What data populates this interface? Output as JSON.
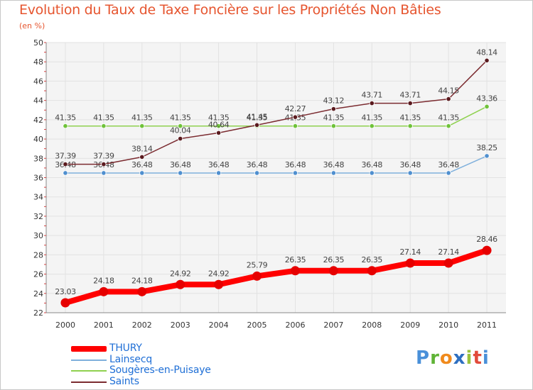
{
  "title": "Evolution du Taux de Taxe Foncière sur les Propriétés Non Bâties",
  "unit": "(en %)",
  "logo": {
    "text": "Proxiti",
    "letters": [
      "P",
      "r",
      "o",
      "x",
      "i",
      "t",
      "i"
    ],
    "colors": [
      "#4a90d9",
      "#5fb336",
      "#f08a1c",
      "#2e6fc0",
      "#9bc23c",
      "#e24b3b",
      "#4a90d9"
    ]
  },
  "chart_data": {
    "type": "line",
    "title": "Evolution du Taux de Taxe Foncière sur les Propriétés Non Bâties",
    "ylabel": "(en %)",
    "xlabel": "",
    "ylim": [
      22,
      50
    ],
    "yticks": [
      "22",
      "24",
      "26",
      "28",
      "30",
      "32",
      "34",
      "36",
      "38",
      "40",
      "42",
      "44",
      "46",
      "48",
      "50"
    ],
    "categories": [
      "2000",
      "2001",
      "2002",
      "2003",
      "2004",
      "2005",
      "2006",
      "2007",
      "2008",
      "2009",
      "2010",
      "2011"
    ],
    "grid": true,
    "series": [
      {
        "name": "Sougères-en-Puisaye",
        "color": "#8fd14f",
        "marker": "#6fc23a",
        "values": [
          41.35,
          41.35,
          41.35,
          41.35,
          41.35,
          41.35,
          41.35,
          41.35,
          41.35,
          41.35,
          41.35,
          43.36
        ],
        "labels": [
          "41.35",
          "41.35",
          "41.35",
          "41.35",
          "41.35",
          "41.35",
          "41.35",
          "41.35",
          "41.35",
          "41.35",
          "41.35",
          "43.36"
        ]
      },
      {
        "name": "Lainsecq",
        "color": "#7fb0dc",
        "marker": "#4f8fcf",
        "values": [
          36.48,
          36.48,
          36.48,
          36.48,
          36.48,
          36.48,
          36.48,
          36.48,
          36.48,
          36.48,
          36.48,
          38.25
        ],
        "labels": [
          "36.48",
          "36.48",
          "36.48",
          "36.48",
          "36.48",
          "36.48",
          "36.48",
          "36.48",
          "36.48",
          "36.48",
          "36.48",
          "38.25"
        ]
      },
      {
        "name": "Saints",
        "color": "#7b2b30",
        "marker": "#5a1a1e",
        "values": [
          37.39,
          37.39,
          38.14,
          40.04,
          40.64,
          41.45,
          42.27,
          43.12,
          43.71,
          43.71,
          44.15,
          48.14
        ],
        "labels": [
          "37.39",
          "37.39",
          "38.14",
          "40.04",
          "40.64",
          "41.45",
          "42.27",
          "43.12",
          "43.71",
          "43.71",
          "44.15",
          "48.14"
        ]
      },
      {
        "name": "THURY",
        "color": "#ff0000",
        "marker": "#e60000",
        "values": [
          23.03,
          24.18,
          24.18,
          24.92,
          24.92,
          25.79,
          26.35,
          26.35,
          26.35,
          27.14,
          27.14,
          28.46
        ],
        "labels": [
          "23.03",
          "24.18",
          "24.18",
          "24.92",
          "24.92",
          "25.79",
          "26.35",
          "26.35",
          "26.35",
          "27.14",
          "27.14",
          "28.46"
        ]
      }
    ],
    "legend": [
      {
        "name": "THURY",
        "color": "#ff0000"
      },
      {
        "name": "Lainsecq",
        "color": "#7fb0dc"
      },
      {
        "name": "Sougères-en-Puisaye",
        "color": "#8fd14f"
      },
      {
        "name": "Saints",
        "color": "#7b2b30"
      }
    ]
  }
}
